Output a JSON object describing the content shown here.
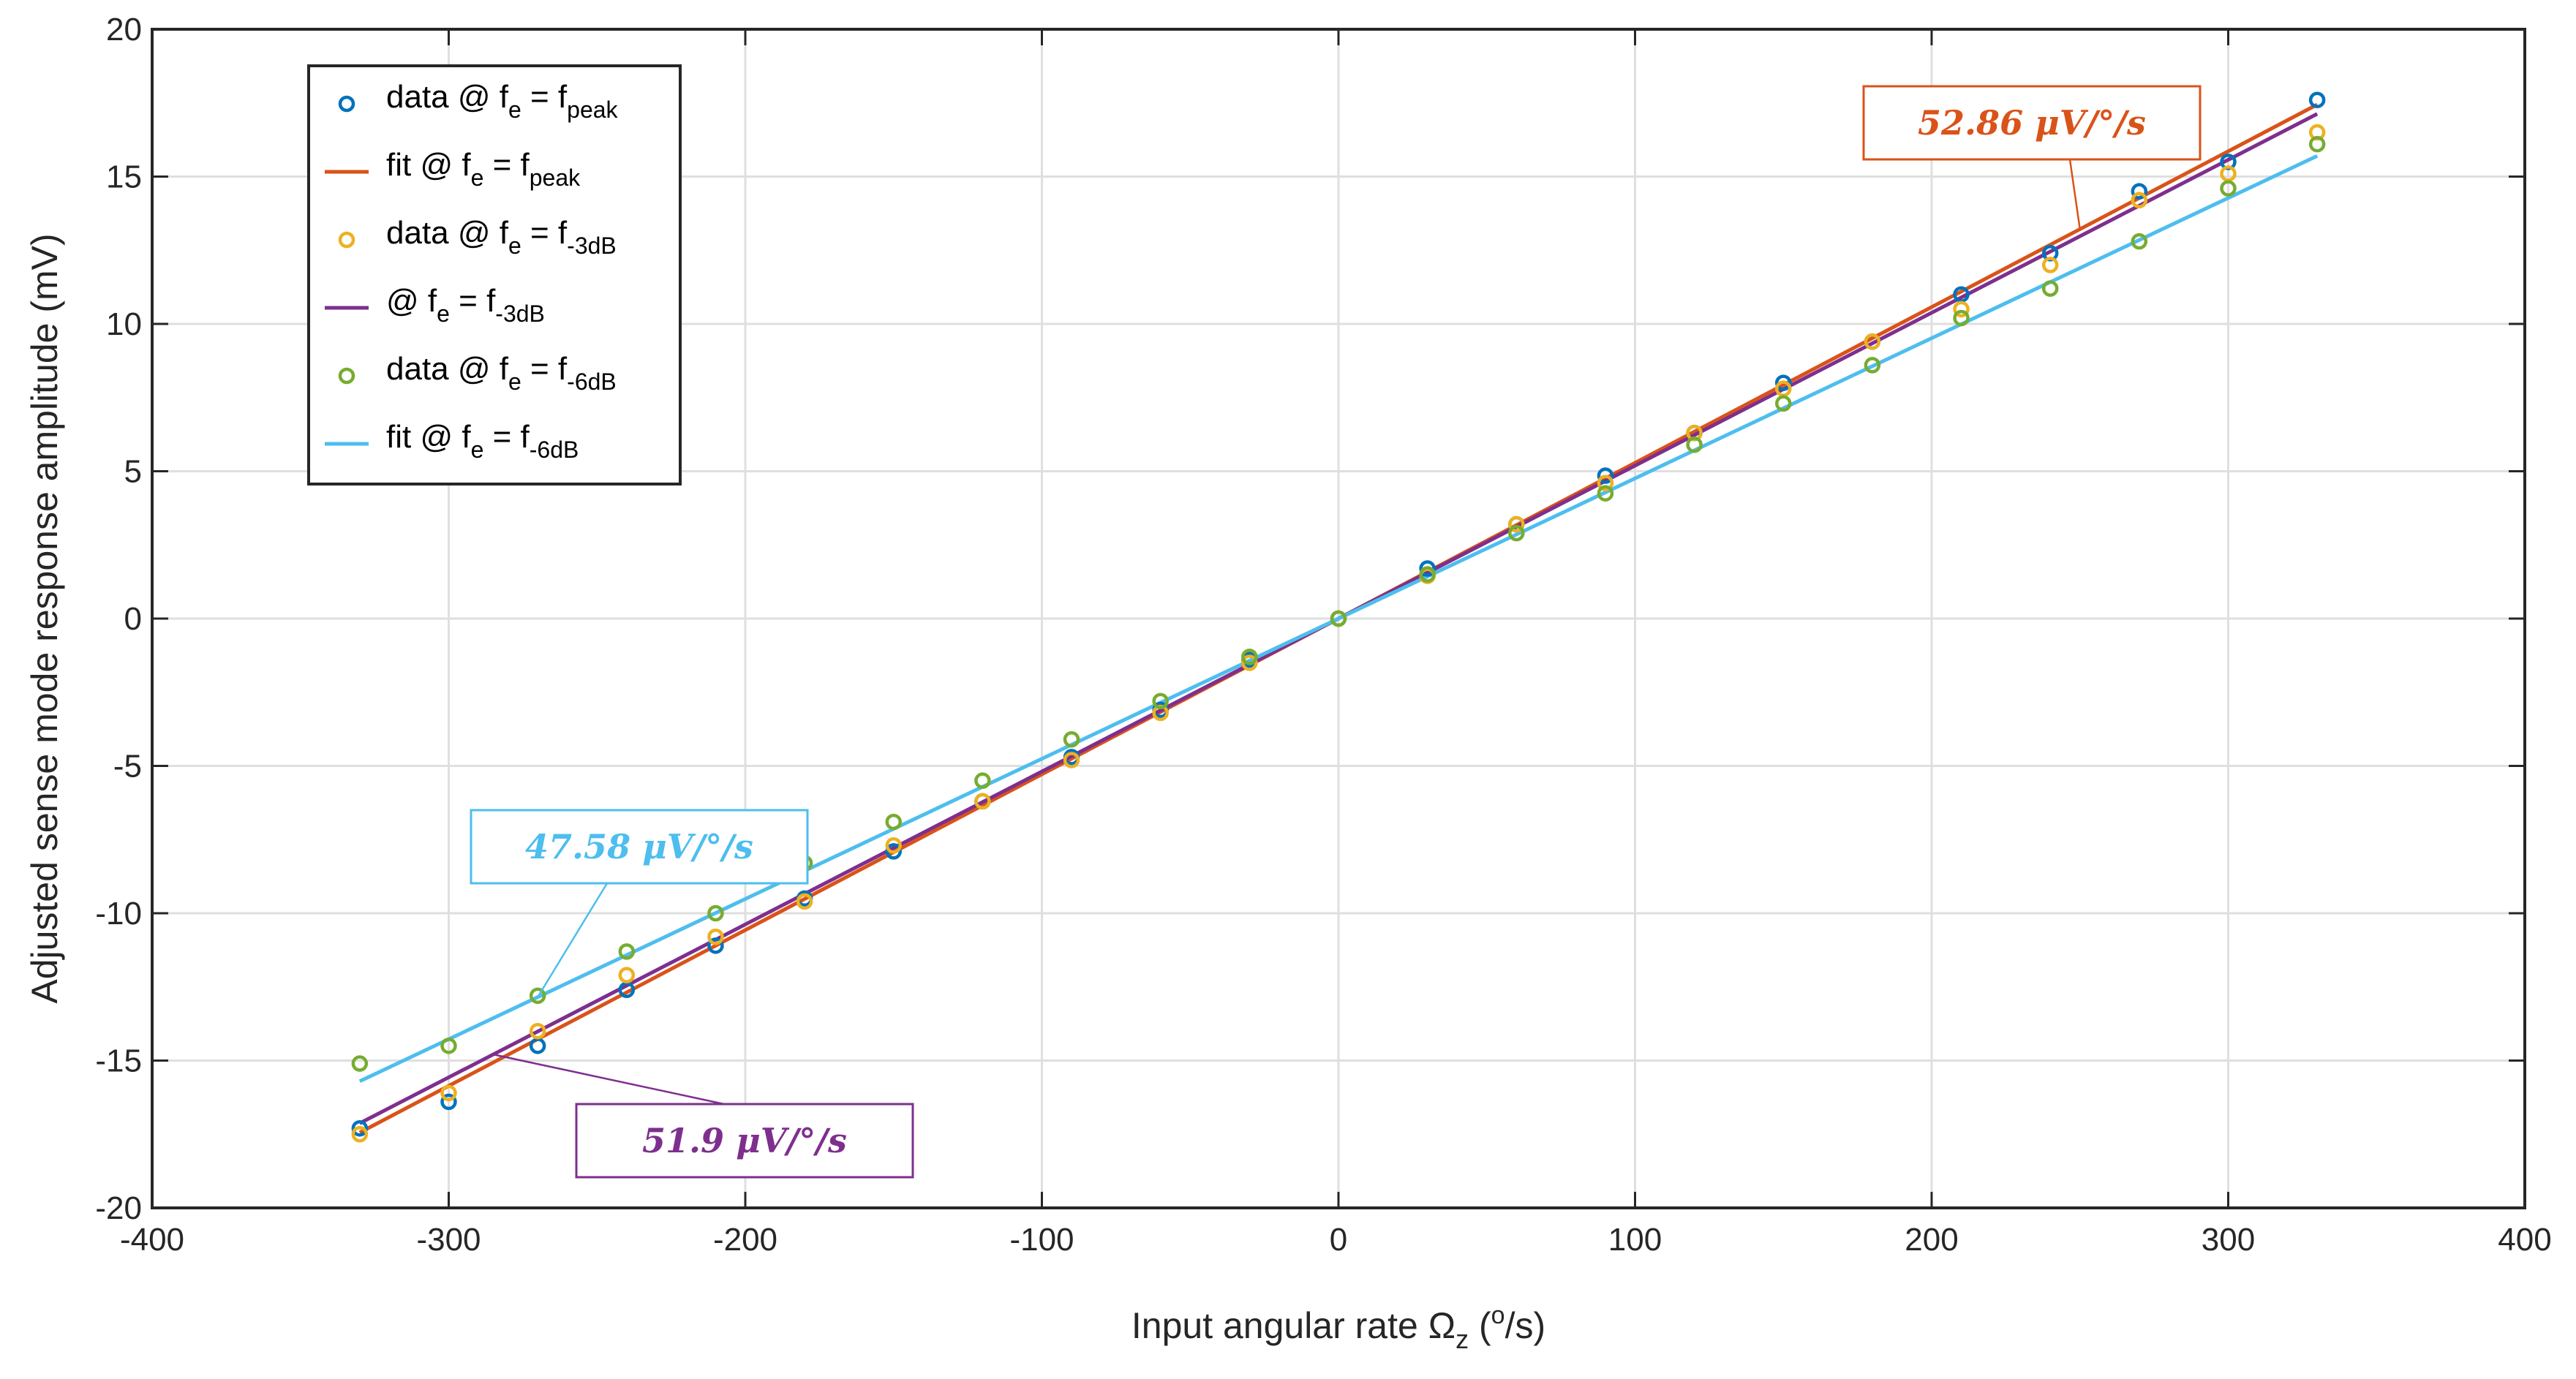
{
  "chart_data": {
    "type": "scatter",
    "xlabel_main": "Input angular rate Ω",
    "xlabel_sub": "z",
    "xlabel_paren_open": " (",
    "xlabel_sup": "o",
    "xlabel_unit": "/s)",
    "ylabel": "Adjusted sense mode response amplitude (mV)",
    "xlim": [
      -400,
      400
    ],
    "ylim": [
      -20,
      20
    ],
    "xticks": [
      -400,
      -300,
      -200,
      -100,
      0,
      100,
      200,
      300,
      400
    ],
    "yticks": [
      -20,
      -15,
      -10,
      -5,
      0,
      5,
      10,
      15,
      20
    ],
    "xtick_labels": [
      "-400",
      "-300",
      "-200",
      "-100",
      "0",
      "100",
      "200",
      "300",
      "400"
    ],
    "ytick_labels": [
      "-20",
      "-15",
      "-10",
      "-5",
      "0",
      "5",
      "10",
      "15",
      "20"
    ],
    "grid": true,
    "legend_position": "top-left",
    "colors": {
      "peak": "#0072BD",
      "peak_fit": "#D95319",
      "db3": "#EDB120",
      "db3_fit": "#7E2F8E",
      "db6": "#77AC30",
      "db6_fit": "#4DBEEE"
    },
    "x": [
      -330,
      -300,
      -270,
      -240,
      -210,
      -180,
      -150,
      -120,
      -90,
      -60,
      -30,
      0,
      30,
      60,
      90,
      120,
      150,
      180,
      210,
      240,
      270,
      300,
      330
    ],
    "series": [
      {
        "key": "peak",
        "kind": "data",
        "legend": {
          "pre": "data @ f",
          "sub1": "e",
          "mid": " = f",
          "sub2": "peak"
        },
        "values": [
          -17.3,
          -16.4,
          -14.5,
          -12.6,
          -11.1,
          -9.5,
          -7.9,
          -6.2,
          -4.7,
          -3.1,
          -1.4,
          0.0,
          1.7,
          3.2,
          4.85,
          6.3,
          8.0,
          9.4,
          11.0,
          12.4,
          14.5,
          15.5,
          17.6
        ]
      },
      {
        "key": "peak_fit",
        "kind": "fit",
        "legend": {
          "pre": "fit @ f",
          "sub1": "e",
          "mid": " = f",
          "sub2": "peak"
        },
        "slope": 0.05286,
        "x_range": [
          -330,
          330
        ]
      },
      {
        "key": "db3",
        "kind": "data",
        "legend": {
          "pre": "data @ f",
          "sub1": "e",
          "mid": " = f",
          "sub2": "-3dB"
        },
        "values": [
          -17.5,
          -16.1,
          -14.0,
          -12.1,
          -10.8,
          -9.6,
          -7.7,
          -6.2,
          -4.8,
          -3.2,
          -1.5,
          0.0,
          1.45,
          3.2,
          4.6,
          6.3,
          7.8,
          9.4,
          10.5,
          12.0,
          14.2,
          15.1,
          16.5
        ]
      },
      {
        "key": "db3_fit",
        "kind": "fit",
        "legend": {
          "pre": "@ f",
          "sub1": "e",
          "mid": " = f",
          "sub2": "-3dB"
        },
        "slope": 0.0519,
        "x_range": [
          -330,
          330
        ]
      },
      {
        "key": "db6",
        "kind": "data",
        "legend": {
          "pre": "data @ f",
          "sub1": "e",
          "mid": " = f",
          "sub2": "-6dB"
        },
        "values": [
          -15.1,
          -14.5,
          -12.8,
          -11.3,
          -10.0,
          -8.3,
          -6.9,
          -5.5,
          -4.1,
          -2.8,
          -1.3,
          0.0,
          1.5,
          2.9,
          4.25,
          5.9,
          7.3,
          8.6,
          10.2,
          11.2,
          12.8,
          14.6,
          16.1
        ]
      },
      {
        "key": "db6_fit",
        "kind": "fit",
        "legend": {
          "pre": "fit @ f",
          "sub1": "e",
          "mid": " = f",
          "sub2": "-6dB"
        },
        "slope": 0.04758,
        "x_range": [
          -330,
          330
        ]
      }
    ],
    "annotations": [
      {
        "key": "peak_fit",
        "text": "52.86 μV/°/s",
        "pointer_x": 250
      },
      {
        "key": "db6_fit",
        "text": "47.58 μV/°/s",
        "pointer_x": -270
      },
      {
        "key": "db3_fit",
        "text": "51.9 μV/°/s",
        "pointer_x": -285
      }
    ]
  }
}
